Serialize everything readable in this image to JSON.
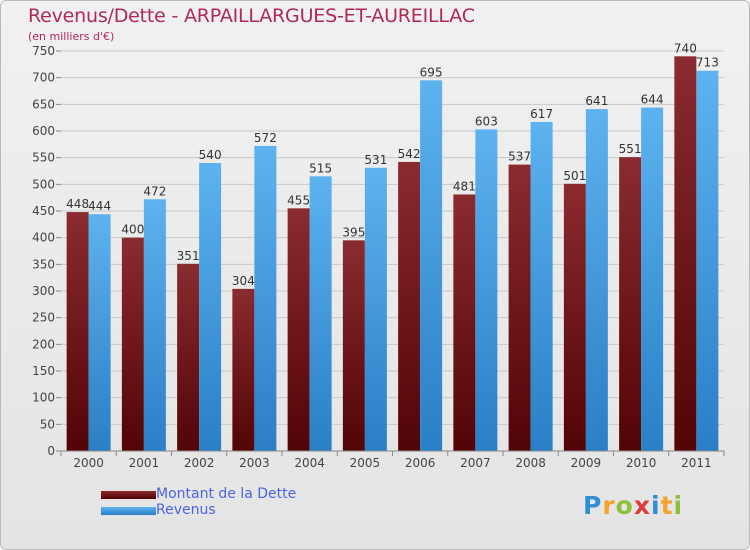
{
  "title": "Revenus/Dette - ARPAILLARGUES-ET-AUREILLAC",
  "subtitle": "(en milliers d'€)",
  "colors": {
    "dette": "#6e0f14",
    "revenus": "#3c9be2",
    "title": "#b02a52",
    "legend_text": "#4f64dc"
  },
  "legend": [
    {
      "label": "Montant de la Dette",
      "color": "#7a1c20"
    },
    {
      "label": "Revenus",
      "color": "#4aa6ea"
    }
  ],
  "logo": {
    "text": "Proxiti",
    "letters": [
      "P",
      "r",
      "o",
      "x",
      "i",
      "t",
      "i"
    ],
    "letter_colors": [
      "#2e8fd3",
      "#f2a32a",
      "#8ebf3b",
      "#e23b3b",
      "#2e8fd3",
      "#f2a32a",
      "#8ebf3b"
    ]
  },
  "chart_data": {
    "type": "bar",
    "title": "Revenus/Dette - ARPAILLARGUES-ET-AUREILLAC",
    "subtitle": "(en milliers d'€)",
    "categories": [
      "2000",
      "2001",
      "2002",
      "2003",
      "2004",
      "2005",
      "2006",
      "2007",
      "2008",
      "2009",
      "2010",
      "2011"
    ],
    "series": [
      {
        "name": "Montant de la Dette",
        "values": [
          448,
          400,
          351,
          304,
          455,
          395,
          542,
          481,
          537,
          501,
          551,
          740
        ]
      },
      {
        "name": "Revenus",
        "values": [
          444,
          472,
          540,
          572,
          515,
          531,
          695,
          603,
          617,
          641,
          644,
          713
        ]
      }
    ],
    "ylim": [
      0,
      750
    ],
    "yticks": [
      0,
      50,
      100,
      150,
      200,
      250,
      300,
      350,
      400,
      450,
      500,
      550,
      600,
      650,
      700,
      750
    ],
    "grid": true,
    "legend_position": "bottom-left"
  }
}
